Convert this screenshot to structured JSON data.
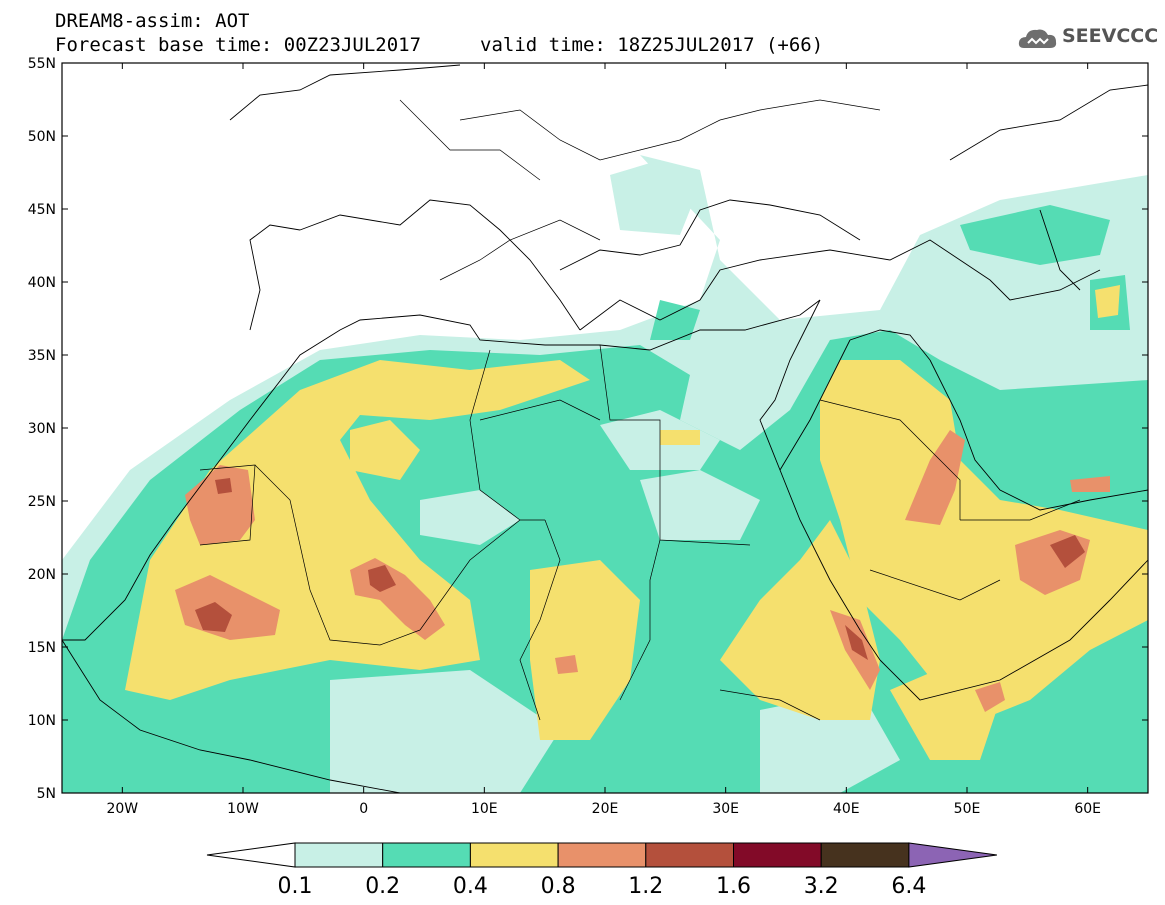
{
  "header": {
    "title": "DREAM8-assim: AOT",
    "base_time": "Forecast base time: 00Z23JUL2017",
    "valid_time": "valid time: 18Z25JUL2017 (+66)",
    "logo_text": "SEEVCCC"
  },
  "map": {
    "lon_range": [
      -25,
      65
    ],
    "lat_range": [
      5,
      55
    ],
    "lat_labels": [
      "55N",
      "50N",
      "45N",
      "40N",
      "35N",
      "30N",
      "25N",
      "20N",
      "15N",
      "10N",
      "5N"
    ],
    "lon_labels": [
      "20W",
      "10W",
      "0",
      "10E",
      "20E",
      "30E",
      "40E",
      "50E",
      "60E"
    ]
  },
  "colorbar": {
    "labels": [
      "0.1",
      "0.2",
      "0.4",
      "0.8",
      "1.2",
      "1.6",
      "3.2",
      "6.4"
    ],
    "colors": [
      "#ffffff",
      "#c8f0e6",
      "#55dcb4",
      "#f5e06e",
      "#e8916a",
      "#b4503c",
      "#820a28",
      "#46321e",
      "#8c64b4"
    ]
  }
}
